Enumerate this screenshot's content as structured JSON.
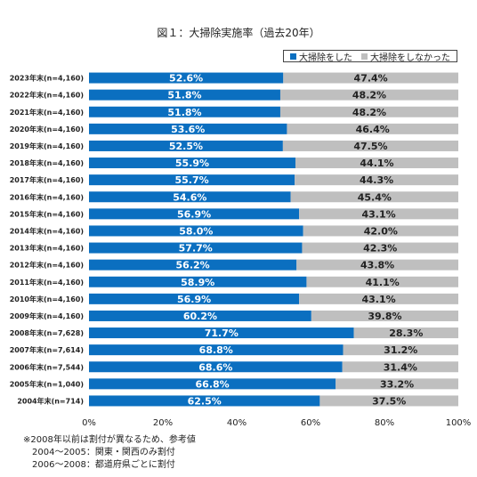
{
  "chart_data": {
    "type": "bar",
    "orientation": "horizontal",
    "stacked": true,
    "title": "図１：大掃除実施率（過去20年）",
    "categories": [
      "2023年末(n=4,160)",
      "2022年末(n=4,160)",
      "2021年末(n=4,160)",
      "2020年末(n=4,160)",
      "2019年末(n=4,160)",
      "2018年末(n=4,160)",
      "2017年末(n=4,160)",
      "2016年末(n=4,160)",
      "2015年末(n=4,160)",
      "2014年末(n=4,160)",
      "2013年末(n=4,160)",
      "2012年末(n=4,160)",
      "2011年末(n=4,160)",
      "2010年末(n=4,160)",
      "2009年末(n=4,160)",
      "2008年末(n=7,628)",
      "2007年末(n=7,614)",
      "2006年末(n=7,544)",
      "2005年末(n=1,040)",
      "2004年末(n=714)"
    ],
    "series": [
      {
        "name": "大掃除をした",
        "color": "#0b6fc0",
        "values": [
          52.6,
          51.8,
          51.8,
          53.6,
          52.5,
          55.9,
          55.7,
          54.6,
          56.9,
          58.0,
          57.7,
          56.2,
          58.9,
          56.9,
          60.2,
          71.7,
          68.8,
          68.6,
          66.8,
          62.5
        ],
        "labels": [
          "52.6%",
          "51.8%",
          "51.8%",
          "53.6%",
          "52.5%",
          "55.9%",
          "55.7%",
          "54.6%",
          "56.9%",
          "58.0%",
          "57.7%",
          "56.2%",
          "58.9%",
          "56.9%",
          "60.2%",
          "71.7%",
          "68.8%",
          "68.6%",
          "66.8%",
          "62.5%"
        ]
      },
      {
        "name": "大掃除をしなかった",
        "color": "#bfbfbf",
        "values": [
          47.4,
          48.2,
          48.2,
          46.4,
          47.5,
          44.1,
          44.3,
          45.4,
          43.1,
          42.0,
          42.3,
          43.8,
          41.1,
          43.1,
          39.8,
          28.3,
          31.2,
          31.4,
          33.2,
          37.5
        ],
        "labels": [
          "47.4%",
          "48.2%",
          "48.2%",
          "46.4%",
          "47.5%",
          "44.1%",
          "44.3%",
          "45.4%",
          "43.1%",
          "42.0%",
          "42.3%",
          "43.8%",
          "41.1%",
          "43.1%",
          "39.8%",
          "28.3%",
          "31.2%",
          "31.4%",
          "33.2%",
          "37.5%"
        ]
      }
    ],
    "xlim": [
      0,
      100
    ],
    "xticks": [
      "0%",
      "20%",
      "40%",
      "60%",
      "80%",
      "100%"
    ],
    "legend": "top-right",
    "grid": false
  },
  "notes": [
    "※2008年以前は割付が異なるため、参考値",
    "　2004～2005：関東・関西のみ割付",
    "　2006～2008：都道府県ごとに割付"
  ]
}
